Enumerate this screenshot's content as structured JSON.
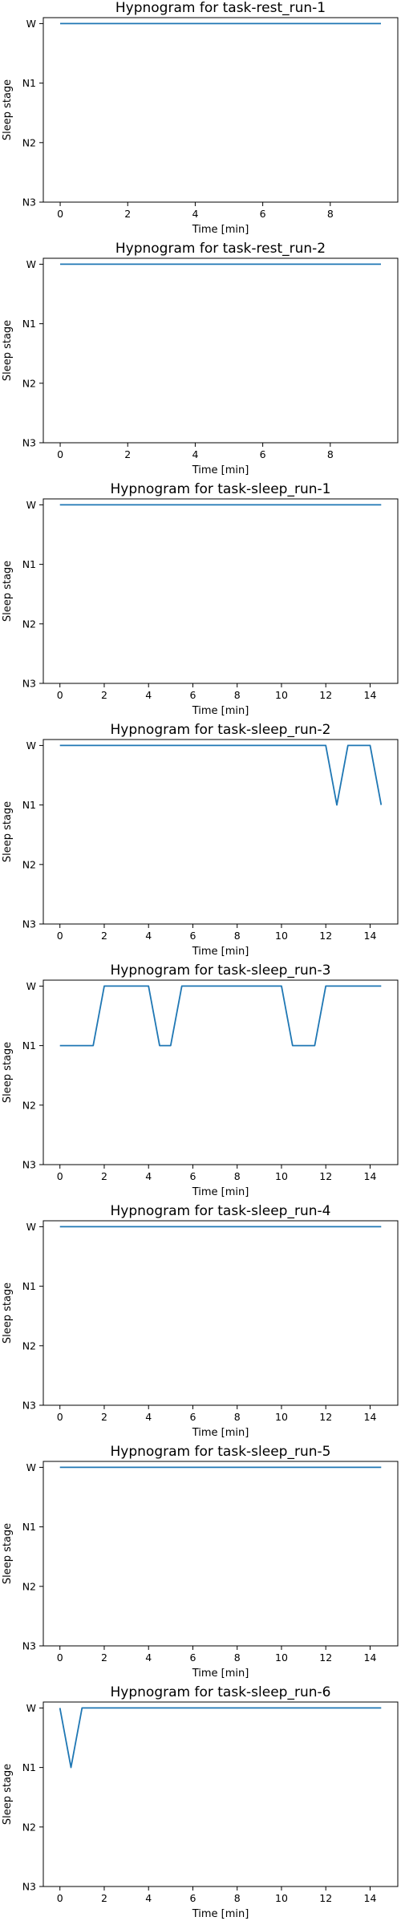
{
  "chart_data": [
    {
      "type": "line",
      "title": "Hypnogram for task-rest_run-1",
      "xlabel": "Time [min]",
      "ylabel": "Sleep stage",
      "xlim": [
        -0.5,
        10.0
      ],
      "xticks": [
        0,
        2,
        4,
        6,
        8
      ],
      "ylim": [
        -0.1,
        3.0
      ],
      "yticks": [
        0,
        1,
        2,
        3
      ],
      "ytick_labels": [
        "W",
        "N1",
        "N2",
        "N3"
      ],
      "grid": false,
      "series": [
        {
          "color": "#1f77b4",
          "x": [
            0,
            9.5
          ],
          "y": [
            0,
            0
          ]
        }
      ]
    },
    {
      "type": "line",
      "title": "Hypnogram for task-rest_run-2",
      "xlabel": "Time [min]",
      "ylabel": "Sleep stage",
      "xlim": [
        -0.5,
        10.0
      ],
      "xticks": [
        0,
        2,
        4,
        6,
        8
      ],
      "ylim": [
        -0.1,
        3.0
      ],
      "yticks": [
        0,
        1,
        2,
        3
      ],
      "ytick_labels": [
        "W",
        "N1",
        "N2",
        "N3"
      ],
      "grid": false,
      "series": [
        {
          "color": "#1f77b4",
          "x": [
            0,
            9.5
          ],
          "y": [
            0,
            0
          ]
        }
      ]
    },
    {
      "type": "line",
      "title": "Hypnogram for task-sleep_run-1",
      "xlabel": "Time [min]",
      "ylabel": "Sleep stage",
      "xlim": [
        -0.75,
        15.25
      ],
      "xticks": [
        0,
        2,
        4,
        6,
        8,
        10,
        12,
        14
      ],
      "ylim": [
        -0.1,
        3.0
      ],
      "yticks": [
        0,
        1,
        2,
        3
      ],
      "ytick_labels": [
        "W",
        "N1",
        "N2",
        "N3"
      ],
      "grid": false,
      "series": [
        {
          "color": "#1f77b4",
          "x": [
            0,
            14.5
          ],
          "y": [
            0,
            0
          ]
        }
      ]
    },
    {
      "type": "line",
      "title": "Hypnogram for task-sleep_run-2",
      "xlabel": "Time [min]",
      "ylabel": "Sleep stage",
      "xlim": [
        -0.75,
        15.25
      ],
      "xticks": [
        0,
        2,
        4,
        6,
        8,
        10,
        12,
        14
      ],
      "ylim": [
        -0.1,
        3.0
      ],
      "yticks": [
        0,
        1,
        2,
        3
      ],
      "ytick_labels": [
        "W",
        "N1",
        "N2",
        "N3"
      ],
      "grid": false,
      "series": [
        {
          "color": "#1f77b4",
          "x": [
            0,
            12,
            12.5,
            13,
            14,
            14.5
          ],
          "y": [
            0,
            0,
            1,
            0,
            0,
            1
          ]
        }
      ]
    },
    {
      "type": "line",
      "title": "Hypnogram for task-sleep_run-3",
      "xlabel": "Time [min]",
      "ylabel": "Sleep stage",
      "xlim": [
        -0.75,
        15.25
      ],
      "xticks": [
        0,
        2,
        4,
        6,
        8,
        10,
        12,
        14
      ],
      "ylim": [
        -0.1,
        3.0
      ],
      "yticks": [
        0,
        1,
        2,
        3
      ],
      "ytick_labels": [
        "W",
        "N1",
        "N2",
        "N3"
      ],
      "grid": false,
      "series": [
        {
          "color": "#1f77b4",
          "x": [
            0,
            1.5,
            2,
            4,
            4.5,
            5,
            5.5,
            10,
            10.5,
            11.5,
            12,
            14.5
          ],
          "y": [
            1,
            1,
            0,
            0,
            1,
            1,
            0,
            0,
            1,
            1,
            0,
            0
          ]
        }
      ]
    },
    {
      "type": "line",
      "title": "Hypnogram for task-sleep_run-4",
      "xlabel": "Time [min]",
      "ylabel": "Sleep stage",
      "xlim": [
        -0.75,
        15.25
      ],
      "xticks": [
        0,
        2,
        4,
        6,
        8,
        10,
        12,
        14
      ],
      "ylim": [
        -0.1,
        3.0
      ],
      "yticks": [
        0,
        1,
        2,
        3
      ],
      "ytick_labels": [
        "W",
        "N1",
        "N2",
        "N3"
      ],
      "grid": false,
      "series": [
        {
          "color": "#1f77b4",
          "x": [
            0,
            14.5
          ],
          "y": [
            0,
            0
          ]
        }
      ]
    },
    {
      "type": "line",
      "title": "Hypnogram for task-sleep_run-5",
      "xlabel": "Time [min]",
      "ylabel": "Sleep stage",
      "xlim": [
        -0.75,
        15.25
      ],
      "xticks": [
        0,
        2,
        4,
        6,
        8,
        10,
        12,
        14
      ],
      "ylim": [
        -0.1,
        3.0
      ],
      "yticks": [
        0,
        1,
        2,
        3
      ],
      "ytick_labels": [
        "W",
        "N1",
        "N2",
        "N3"
      ],
      "grid": false,
      "series": [
        {
          "color": "#1f77b4",
          "x": [
            0,
            14.5
          ],
          "y": [
            0,
            0
          ]
        }
      ]
    },
    {
      "type": "line",
      "title": "Hypnogram for task-sleep_run-6",
      "xlabel": "Time [min]",
      "ylabel": "Sleep stage",
      "xlim": [
        -0.75,
        15.25
      ],
      "xticks": [
        0,
        2,
        4,
        6,
        8,
        10,
        12,
        14
      ],
      "ylim": [
        -0.1,
        3.0
      ],
      "yticks": [
        0,
        1,
        2,
        3
      ],
      "ytick_labels": [
        "W",
        "N1",
        "N2",
        "N3"
      ],
      "grid": false,
      "series": [
        {
          "color": "#1f77b4",
          "x": [
            0,
            0.5,
            1,
            14.5
          ],
          "y": [
            0,
            1,
            0,
            0
          ]
        }
      ]
    }
  ]
}
